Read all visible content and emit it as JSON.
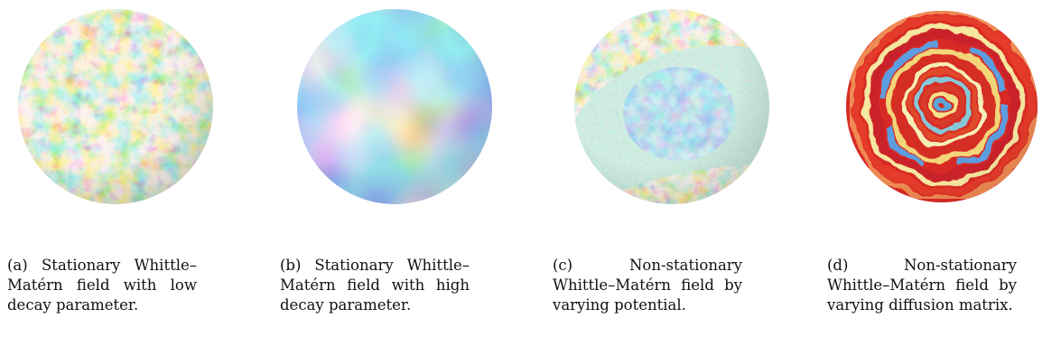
{
  "panels": [
    {
      "caption": "(a) Stationary Whittle–Matérn field with low decay parameter.",
      "sphere_icon": "sphere-field-low-decay"
    },
    {
      "caption": "(b) Stationary Whittle–Matérn field with high decay parameter.",
      "sphere_icon": "sphere-field-high-decay"
    },
    {
      "caption": "(c) Non-stationary Whittle–Matérn field by varying potential.",
      "sphere_icon": "sphere-field-varying-potential"
    },
    {
      "caption": "(d) Non-stationary Whittle–Matérn field by varying diffusion matrix.",
      "sphere_icon": "sphere-field-varying-diffusion"
    }
  ],
  "colormap": {
    "name": "Spectral",
    "low": "#7a1fa2",
    "mid_low": "#3b7bd8",
    "mid": "#9fd9c0",
    "mid_high": "#f4e07a",
    "high": "#d7261e"
  }
}
